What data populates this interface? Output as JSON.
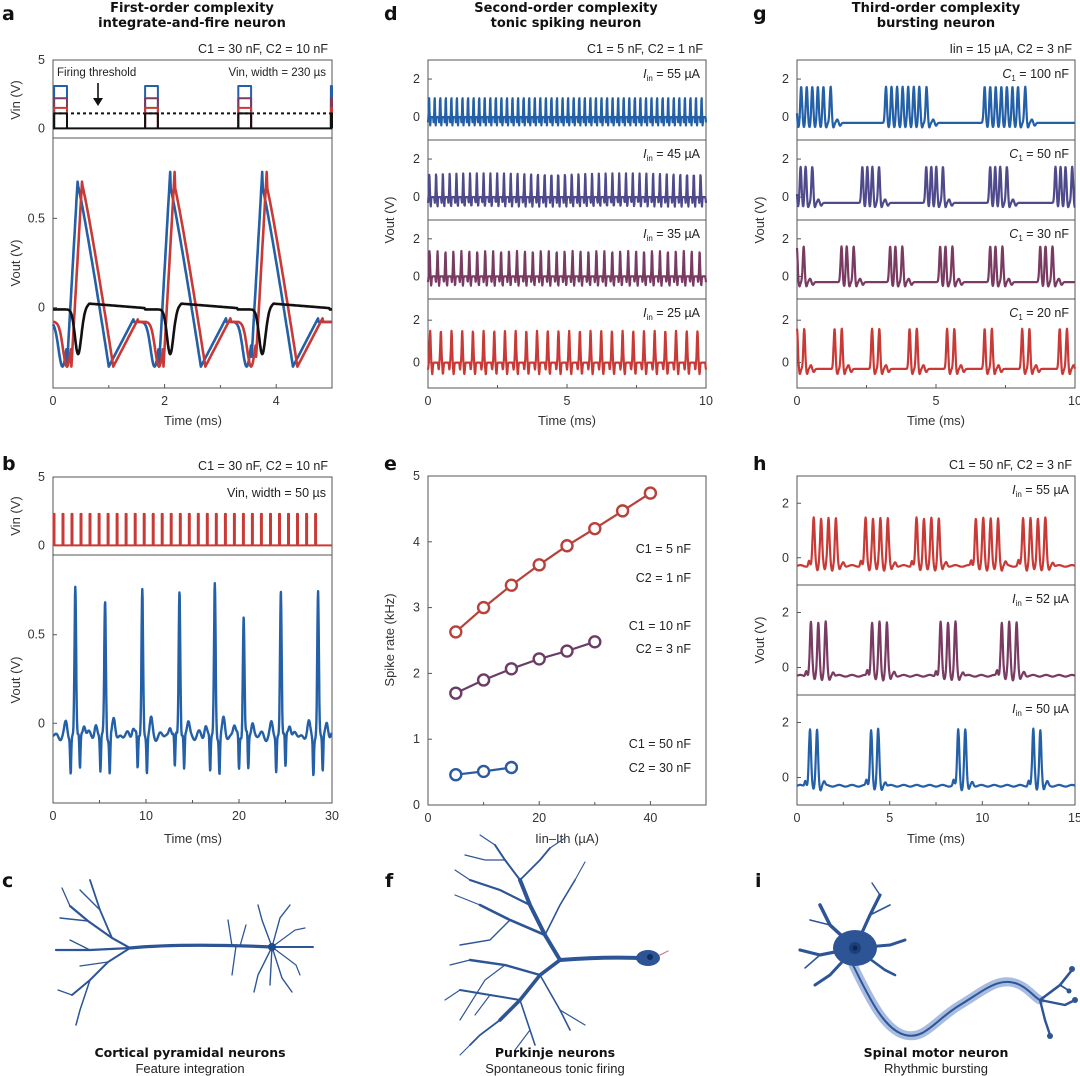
{
  "colors": {
    "blue": "#2460a8",
    "indigo": "#4f4a8c",
    "plum": "#7a3b62",
    "red": "#c93a36",
    "black": "#111111",
    "e_red": "#b8413a",
    "e_purple": "#6b3d66",
    "e_blue": "#2a5aa0"
  },
  "panels": {
    "a": {
      "letter": "a",
      "title_line1": "First-order complexity",
      "title_line2": "integrate-and-fire neuron",
      "params": "C1 = 30 nF, C2 = 10 nF",
      "vin_note": "Vin, width = 230 µs",
      "threshold_label": "Firing threshold",
      "vin_ylabel": "Vin (V)",
      "vout_ylabel": "Vout (V)",
      "xlabel": "Time (ms)"
    },
    "b": {
      "letter": "b",
      "params": "C1 = 30 nF, C2 = 10 nF",
      "vin_note": "Vin, width = 50 µs",
      "vin_ylabel": "Vin (V)",
      "vout_ylabel": "Vout (V)",
      "xlabel": "Time (ms)"
    },
    "c": {
      "letter": "c",
      "caption_bold": "Cortical pyramidal neurons",
      "caption": "Feature integration"
    },
    "d": {
      "letter": "d",
      "title_line1": "Second-order complexity",
      "title_line2": "tonic spiking neuron",
      "params": "C1 = 5 nF, C2 = 1 nF",
      "ylabel": "Vout (V)",
      "xlabel": "Time (ms)"
    },
    "e": {
      "letter": "e",
      "ylabel": "Spike rate (kHz)",
      "xlabel": "Iin–Ith (µA)"
    },
    "f": {
      "letter": "f",
      "caption_bold": "Purkinje neurons",
      "caption": "Spontaneous tonic firing"
    },
    "g": {
      "letter": "g",
      "title_line1": "Third-order complexity",
      "title_line2": "bursting neuron",
      "params": "Iin = 15 µA, C2 = 3 nF",
      "ylabel": "Vout (V)",
      "xlabel": "Time (ms)"
    },
    "h": {
      "letter": "h",
      "params": "C1 = 50 nF, C2 = 3 nF",
      "ylabel": "Vout (V)",
      "xlabel": "Time (ms)"
    },
    "i": {
      "letter": "i",
      "caption_bold": "Spinal motor neuron",
      "caption": "Rhythmic bursting"
    }
  },
  "chart_data": [
    {
      "id": "a",
      "type": "line",
      "title": "First-order complexity integrate-and-fire neuron",
      "xlabel": "Time (ms)",
      "xlim": [
        0,
        5
      ],
      "xticks": [
        0,
        2,
        4
      ],
      "subplots": [
        {
          "name": "Vin",
          "ylabel": "Vin (V)",
          "ylim": [
            -0.7,
            5
          ],
          "yticks": [
            0,
            5
          ],
          "pulse_period_ms": 1.67,
          "pulse_width_us": 230,
          "threshold_V": 1.1,
          "series": [
            {
              "name": "blue input",
              "amplitude": 3.1,
              "color": "blue"
            },
            {
              "name": "purple input",
              "amplitude": 2.2,
              "color": "plum"
            },
            {
              "name": "red input",
              "amplitude": 1.5,
              "color": "red"
            },
            {
              "name": "sub-threshold input",
              "amplitude": 1.1,
              "color": "black"
            }
          ]
        },
        {
          "name": "Vout",
          "ylabel": "Vout (V)",
          "ylim": [
            -0.45,
            0.95
          ],
          "yticks": [
            0,
            0.5
          ],
          "series": [
            {
              "name": "blue response",
              "peak": 0.68,
              "trough": -0.33,
              "color": "blue"
            },
            {
              "name": "red response",
              "peak": 0.68,
              "trough": -0.33,
              "color": "red"
            },
            {
              "name": "black response (no spike)",
              "peak": 0.03,
              "trough": -0.22,
              "color": "black"
            }
          ],
          "spike_times_ms": [
            0.5,
            2.15,
            3.8
          ]
        }
      ]
    },
    {
      "id": "b",
      "type": "line",
      "xlabel": "Time (ms)",
      "xlim": [
        0,
        30
      ],
      "xticks": [
        0,
        10,
        20,
        30
      ],
      "subplots": [
        {
          "name": "Vin",
          "ylabel": "Vin (V)",
          "ylim": [
            -0.7,
            5
          ],
          "yticks": [
            0,
            5
          ],
          "pulse_amplitude": 2.3,
          "pulse_count": 30,
          "color": "red"
        },
        {
          "name": "Vout",
          "ylabel": "Vout (V)",
          "ylim": [
            -0.45,
            0.95
          ],
          "yticks": [
            0,
            0.5
          ],
          "color": "blue",
          "spike_times_ms": [
            2.4,
            5.6,
            9.6,
            13.6,
            17.4,
            20.5,
            24.5,
            28.5
          ],
          "spike_peaks": [
            0.77,
            0.68,
            0.76,
            0.77,
            0.78,
            0.62,
            0.76,
            0.73
          ],
          "baseline": -0.07,
          "trough": -0.27
        }
      ]
    },
    {
      "id": "d",
      "type": "line",
      "title": "Second-order complexity tonic spiking neuron",
      "xlabel": "Time (ms)",
      "ylabel": "Vout (V)",
      "xlim": [
        0,
        10
      ],
      "xticks": [
        0,
        5,
        10
      ],
      "ylim": [
        -1.2,
        3
      ],
      "yticks": [
        0,
        2
      ],
      "series": [
        {
          "name": "Iin = 55 µA",
          "label": "55 µA",
          "spikes_in_window": 50,
          "peak": 1.1,
          "trough": -0.45,
          "color": "blue"
        },
        {
          "name": "Iin = 45 µA",
          "label": "45 µA",
          "spikes_in_window": 41,
          "peak": 1.25,
          "trough": -0.5,
          "color": "indigo"
        },
        {
          "name": "Iin = 35 µA",
          "label": "35 µA",
          "spikes_in_window": 35,
          "peak": 1.35,
          "trough": -0.5,
          "color": "plum"
        },
        {
          "name": "Iin = 25 µA",
          "label": "25 µA",
          "spikes_in_window": 26,
          "peak": 1.5,
          "trough": -0.55,
          "color": "red"
        }
      ]
    },
    {
      "id": "e",
      "type": "scatter",
      "xlabel": "Iin–Ith (µA)",
      "ylabel": "Spike rate (kHz)",
      "xlim": [
        0,
        50
      ],
      "xticks": [
        0,
        20,
        40
      ],
      "ylim": [
        0,
        5
      ],
      "yticks": [
        0,
        1,
        2,
        3,
        4,
        5
      ],
      "series": [
        {
          "name": "C1 = 5 nF, C2 = 1 nF",
          "label1": "C1 = 5 nF",
          "label2": "C2 = 1 nF",
          "color": "e_red",
          "x": [
            5,
            10,
            15,
            20,
            25,
            30,
            35,
            40
          ],
          "y": [
            2.63,
            3.0,
            3.34,
            3.65,
            3.94,
            4.2,
            4.47,
            4.74
          ]
        },
        {
          "name": "C1 = 10 nF, C2 = 3 nF",
          "label1": "C1 = 10 nF",
          "label2": "C2 = 3 nF",
          "color": "e_purple",
          "x": [
            5,
            10,
            15,
            20,
            25,
            30
          ],
          "y": [
            1.7,
            1.9,
            2.07,
            2.22,
            2.34,
            2.48
          ]
        },
        {
          "name": "C1 = 50 nF, C2 = 30 nF",
          "label1": "C1 = 50 nF",
          "label2": "C2 = 30 nF",
          "color": "e_blue",
          "x": [
            5,
            10,
            15
          ],
          "y": [
            0.46,
            0.51,
            0.57
          ]
        }
      ]
    },
    {
      "id": "g",
      "type": "line",
      "title": "Third-order complexity bursting neuron",
      "xlabel": "Time (ms)",
      "ylabel": "Vout (V)",
      "xlim": [
        0,
        10
      ],
      "xticks": [
        0,
        5,
        10
      ],
      "ylim": [
        -1.2,
        3
      ],
      "yticks": [
        0,
        2
      ],
      "series": [
        {
          "name": "C1 = 100 nF",
          "label": "100 nF",
          "color": "blue",
          "burst_starts_ms": [
            -0.05,
            3.2,
            6.75
          ],
          "spikes_per_burst": [
            7,
            8,
            8
          ],
          "spike_interval_ms": 0.2
        },
        {
          "name": "C1 = 50 nF",
          "label": "50 nF",
          "color": "indigo",
          "burst_starts_ms": [
            -0.05,
            2.35,
            4.65,
            6.95,
            9.3
          ],
          "spikes_per_burst": [
            4,
            4,
            4,
            4,
            4
          ],
          "spike_interval_ms": 0.18
        },
        {
          "name": "C1 = 30 nF",
          "label": "30 nF",
          "color": "plum",
          "burst_starts_ms": [
            -0.2,
            1.6,
            3.35,
            5.15,
            6.95,
            8.75
          ],
          "spikes_per_burst": [
            3,
            3,
            3,
            3,
            3,
            3
          ],
          "spike_interval_ms": 0.19
        },
        {
          "name": "C1 = 20 nF",
          "label": "20 nF",
          "color": "red",
          "burst_starts_ms": [
            0.0,
            1.35,
            2.7,
            4.05,
            5.4,
            6.75,
            8.1,
            9.45
          ],
          "spikes_per_burst": [
            2,
            2,
            2,
            2,
            2,
            2,
            2,
            2
          ],
          "spike_interval_ms": 0.2
        }
      ]
    },
    {
      "id": "h",
      "type": "line",
      "xlabel": "Time (ms)",
      "ylabel": "Vout (V)",
      "xlim": [
        0,
        15
      ],
      "xticks": [
        0,
        5,
        10,
        15
      ],
      "ylim": [
        -1,
        3
      ],
      "yticks": [
        0,
        2
      ],
      "series": [
        {
          "name": "Iin = 55 µA",
          "label": "55 µA",
          "color": "red",
          "burst_starts_ms": [
            0.9,
            3.7,
            6.45,
            9.65,
            12.2
          ],
          "spikes_per_burst": [
            4,
            4,
            4,
            4,
            4
          ],
          "spike_interval_ms": 0.4,
          "peak": 1.35
        },
        {
          "name": "Iin = 52 µA",
          "label": "52 µA",
          "color": "plum",
          "burst_starts_ms": [
            0.75,
            4.05,
            7.75,
            11.05
          ],
          "spikes_per_burst": [
            3,
            3,
            3,
            3
          ],
          "spike_interval_ms": 0.4,
          "peak": 1.55
        },
        {
          "name": "Iin = 50 µA",
          "label": "50 µA",
          "color": "blue",
          "burst_starts_ms": [
            0.7,
            4.0,
            8.7,
            12.75
          ],
          "spikes_per_burst": [
            2,
            2,
            2,
            2
          ],
          "spike_interval_ms": 0.38,
          "peak": 1.65
        }
      ]
    }
  ]
}
